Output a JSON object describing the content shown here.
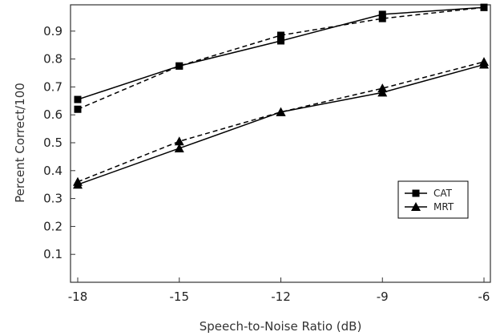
{
  "chart_data": {
    "type": "line",
    "title": "",
    "xlabel": "Speech-to-Noise Ratio (dB)",
    "ylabel": "Percent Correct/100",
    "x": [
      -18,
      -15,
      -12,
      -9,
      -6
    ],
    "x_ticks": [
      "-18",
      "-15",
      "-12",
      "-9",
      "-6"
    ],
    "y_ticks": [
      "0.1",
      "0.2",
      "0.3",
      "0.4",
      "0.5",
      "0.6",
      "0.7",
      "0.8",
      "0.9"
    ],
    "xlim": [
      -18,
      -6
    ],
    "ylim": [
      0,
      1.0
    ],
    "grid": false,
    "legend_position": "lower-right",
    "legend": [
      {
        "label": "CAT",
        "marker": "square"
      },
      {
        "label": "MRT",
        "marker": "triangle"
      }
    ],
    "series": [
      {
        "legend": "CAT",
        "style": "solid",
        "marker": "square",
        "values": [
          0.655,
          0.775,
          0.865,
          0.96,
          0.985
        ]
      },
      {
        "legend": "CAT",
        "style": "dashed",
        "marker": "square",
        "values": [
          0.62,
          0.775,
          0.885,
          0.945,
          0.985
        ]
      },
      {
        "legend": "MRT",
        "style": "solid",
        "marker": "triangle",
        "values": [
          0.35,
          0.48,
          0.61,
          0.68,
          0.78
        ]
      },
      {
        "legend": "MRT",
        "style": "dashed",
        "marker": "triangle",
        "values": [
          0.36,
          0.505,
          0.61,
          0.695,
          0.79
        ]
      }
    ],
    "colors": {
      "line": "#000000",
      "axis": "#333333"
    }
  }
}
